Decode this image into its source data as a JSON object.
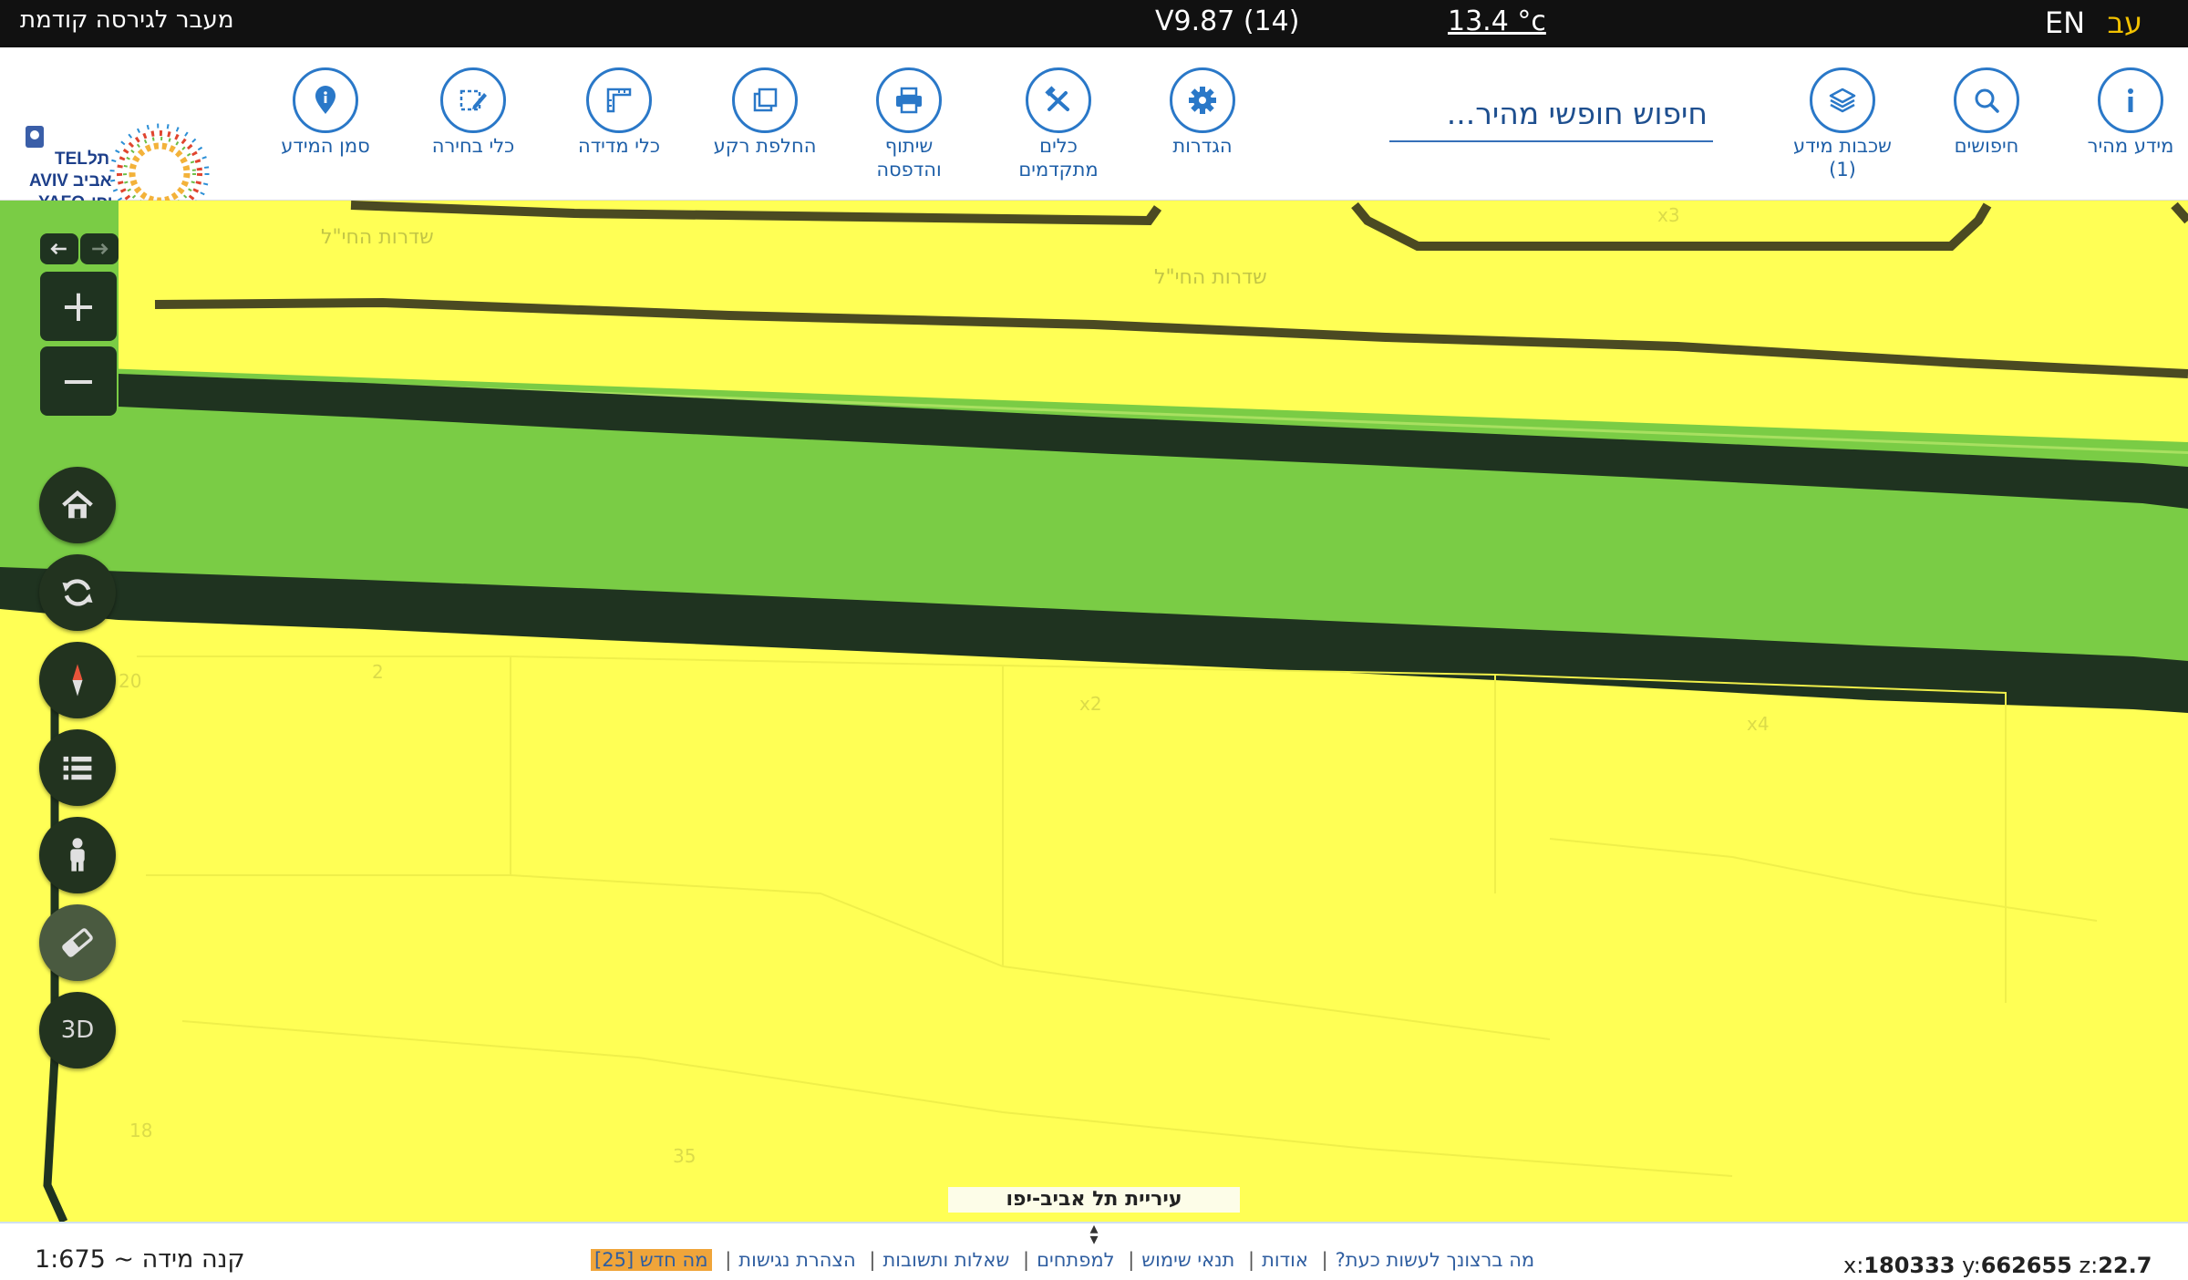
{
  "topbar": {
    "lang_he": "עב",
    "lang_en": "EN",
    "temperature": "13.4 °c",
    "version": "V9.87 (14)",
    "prev_version": "מעבר לגירסה קודמת"
  },
  "toolbar": {
    "tools": [
      {
        "key": "quick_info",
        "label": "מידע מהיר",
        "sub": "",
        "icon": "info-icon"
      },
      {
        "key": "searches",
        "label": "חיפושים",
        "sub": "",
        "icon": "search-icon"
      },
      {
        "key": "layers",
        "label": "שכבות מידע",
        "sub": "(1)",
        "icon": "layers-icon"
      },
      {
        "key": "settings",
        "label": "הגדרות",
        "sub": "",
        "icon": "gear-icon"
      },
      {
        "key": "advanced_tools",
        "label": "כלים",
        "sub": "מתקדמים",
        "icon": "tools-icon"
      },
      {
        "key": "share_print",
        "label": "שיתוף",
        "sub": "והדפסה",
        "icon": "printer-icon"
      },
      {
        "key": "switch_bg",
        "label": "החלפת רקע",
        "sub": "",
        "icon": "swap-background-icon"
      },
      {
        "key": "measure",
        "label": "כלי מדידה",
        "sub": "",
        "icon": "ruler-icon"
      },
      {
        "key": "select",
        "label": "כלי בחירה",
        "sub": "",
        "icon": "select-pencil-icon"
      },
      {
        "key": "info_marker",
        "label": "סמן המידע",
        "sub": "",
        "icon": "marker-icon"
      }
    ],
    "search_placeholder": "חיפוש חופשי מהיר..."
  },
  "logo": {
    "text_he": "תל אביב יפו",
    "text_en": "TEL AVIV YAFO"
  },
  "map": {
    "street_labels": [
      "שדרות החי\"ל",
      "שדרות החי\"ל"
    ],
    "parcel_numbers": [
      "20",
      "2",
      "x2",
      "x4",
      "18",
      "35",
      "x3"
    ],
    "controls": {
      "zoom_in": "+",
      "zoom_out": "−",
      "three_d": "3D"
    },
    "city_banner": "עיריית תל אביב-יפו"
  },
  "footer": {
    "scale_text": "קנה מידה ~ 1:675",
    "links": [
      "מה ברצונך לעשות כעת?",
      "אודות",
      "תנאי שימוש",
      "למפתחים",
      "שאלות ותשובות",
      "הצהרת נגישות"
    ],
    "whats_new": "מה חדש [25]",
    "coords": {
      "x_label": "x:",
      "x": "180333",
      "y_label": "y:",
      "y": "662655",
      "z_label": "z:",
      "z": "22.7"
    }
  },
  "colors": {
    "accent": "#2a78c8",
    "map_yellow": "#ffff55",
    "map_green": "#7acc45",
    "road_dark": "#1f3320",
    "highlight": "#f0a53a"
  }
}
